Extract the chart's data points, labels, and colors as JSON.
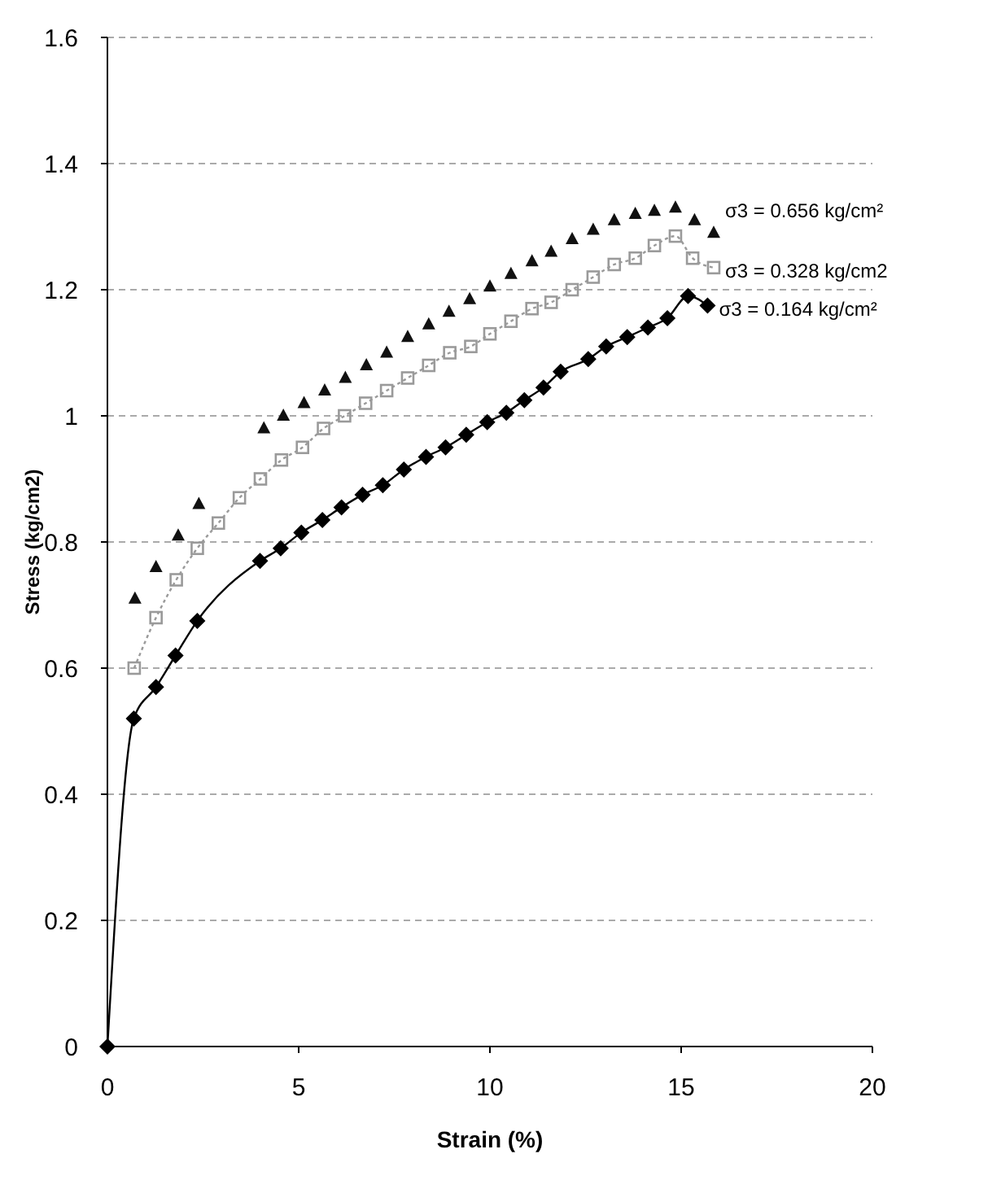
{
  "chart_data": {
    "type": "scatter",
    "xlabel": "Strain (%)",
    "ylabel": "Stress (kg/cm2)",
    "xlim": [
      0,
      20
    ],
    "xticks": [
      0,
      5,
      10,
      15,
      20
    ],
    "ylim": [
      0,
      1.6
    ],
    "yticks": [
      0,
      0.2,
      0.4,
      0.6,
      0.8,
      1,
      1.2,
      1.4,
      1.6
    ],
    "grid": "y",
    "series": [
      {
        "marker": "triangle",
        "color": "#111111",
        "x": [
          0.72,
          1.27,
          1.85,
          2.39,
          4.09,
          4.6,
          5.14,
          5.68,
          6.22,
          6.77,
          7.3,
          7.85,
          8.4,
          8.93,
          9.47,
          10.0,
          10.55,
          11.1,
          11.6,
          12.15,
          12.7,
          13.25,
          13.8,
          14.3,
          14.85,
          15.35,
          15.85
        ],
        "values": [
          0.71,
          0.76,
          0.81,
          0.86,
          0.98,
          1.0,
          1.02,
          1.04,
          1.06,
          1.08,
          1.1,
          1.125,
          1.145,
          1.165,
          1.185,
          1.205,
          1.225,
          1.245,
          1.26,
          1.28,
          1.295,
          1.31,
          1.32,
          1.325,
          1.33,
          1.31,
          1.29
        ]
      },
      {
        "type": "line",
        "marker": "square",
        "line_style": "dotted",
        "color": "#9a9a9a",
        "x": [
          0.7,
          1.27,
          1.8,
          2.35,
          2.9,
          3.45,
          4.0,
          4.55,
          5.1,
          5.65,
          6.2,
          6.75,
          7.3,
          7.85,
          8.4,
          8.95,
          9.5,
          10.0,
          10.55,
          11.1,
          11.6,
          12.15,
          12.7,
          13.25,
          13.8,
          14.3,
          14.85,
          15.3,
          15.85
        ],
        "values": [
          0.6,
          0.68,
          0.74,
          0.79,
          0.83,
          0.87,
          0.9,
          0.93,
          0.95,
          0.98,
          1.0,
          1.02,
          1.04,
          1.06,
          1.08,
          1.1,
          1.11,
          1.13,
          1.15,
          1.17,
          1.18,
          1.2,
          1.22,
          1.24,
          1.25,
          1.27,
          1.285,
          1.25,
          1.235
        ]
      },
      {
        "type": "line",
        "marker": "diamond",
        "line_style": "solid",
        "color": "#000000",
        "x": [
          0,
          0.69,
          1.27,
          1.78,
          2.35,
          3.99,
          4.53,
          5.07,
          5.62,
          6.12,
          6.67,
          7.2,
          7.75,
          8.33,
          8.84,
          9.38,
          9.93,
          10.43,
          10.9,
          11.4,
          11.85,
          12.57,
          13.04,
          13.59,
          14.13,
          14.64,
          15.18,
          15.69
        ],
        "values": [
          0,
          0.52,
          0.57,
          0.62,
          0.675,
          0.77,
          0.79,
          0.815,
          0.835,
          0.855,
          0.875,
          0.89,
          0.915,
          0.935,
          0.95,
          0.97,
          0.99,
          1.005,
          1.025,
          1.045,
          1.07,
          1.09,
          1.11,
          1.125,
          1.14,
          1.155,
          1.19,
          1.175
        ]
      }
    ],
    "annotations": [
      "σ3 = 0.656 kg/cm²",
      "σ3 = 0.328 kg/cm2",
      "σ3 = 0.164 kg/cm²"
    ]
  }
}
